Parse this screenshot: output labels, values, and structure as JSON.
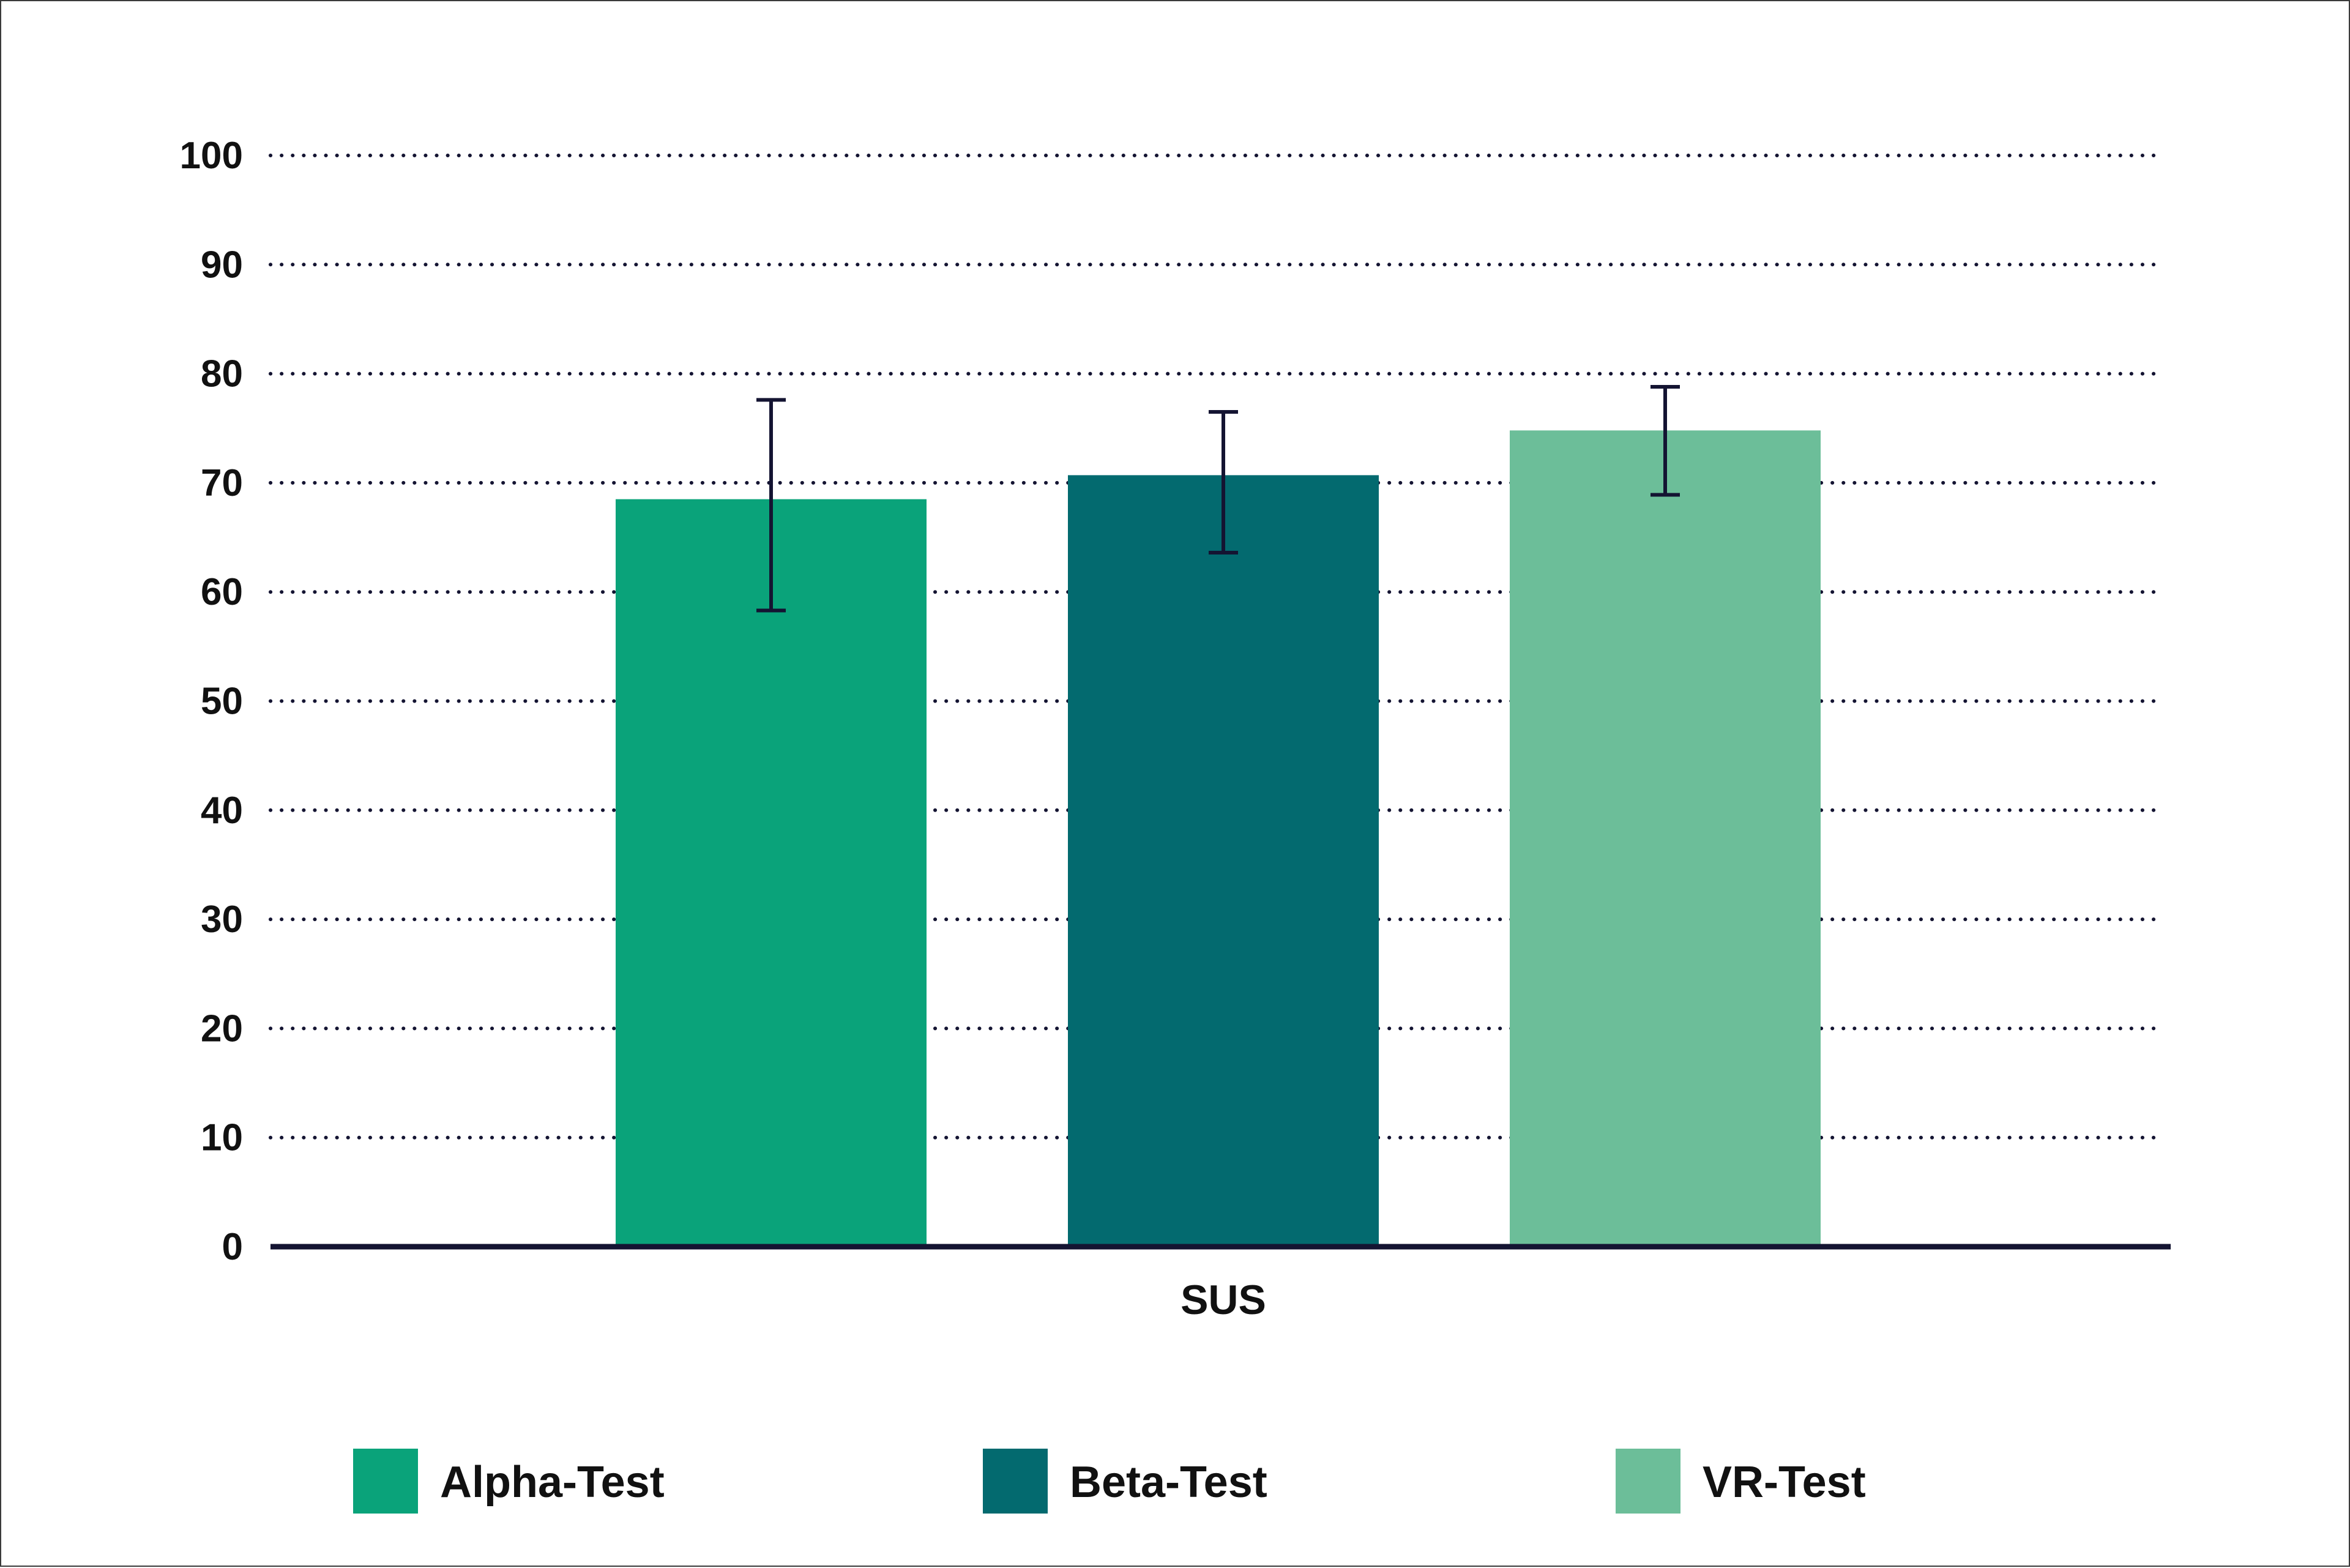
{
  "chart_data": {
    "type": "bar",
    "categories": [
      "SUS"
    ],
    "series": [
      {
        "name": "Alpha-Test",
        "values": [
          68.5
        ],
        "error_low": [
          58.3
        ],
        "error_high": [
          77.6
        ],
        "color": "#0aa37a"
      },
      {
        "name": "Beta-Test",
        "values": [
          70.7
        ],
        "error_low": [
          63.6
        ],
        "error_high": [
          76.5
        ],
        "color": "#036a6f"
      },
      {
        "name": "VR-Test",
        "values": [
          74.8
        ],
        "error_low": [
          68.9
        ],
        "error_high": [
          78.8
        ],
        "color": "#6cbe99"
      }
    ],
    "yticks": [
      "0",
      "10",
      "20",
      "30",
      "40",
      "50",
      "60",
      "70",
      "80",
      "90",
      "100"
    ],
    "ylim": [
      0,
      100
    ],
    "grid": true,
    "grid_style": "dotted",
    "legend_position": "bottom",
    "title": "",
    "xlabel": "",
    "ylabel": "",
    "error_bar_color": "#141432",
    "axis_color": "#141432"
  }
}
